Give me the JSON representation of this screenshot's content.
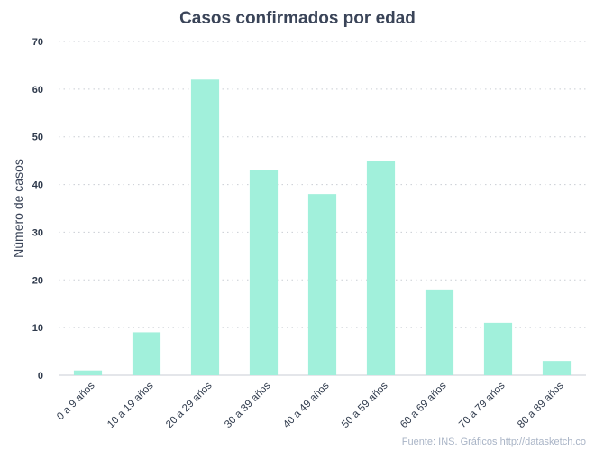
{
  "chart_data": {
    "type": "bar",
    "title": "Casos confirmados por edad",
    "ylabel": "Número de casos",
    "xlabel": "",
    "categories": [
      "0 a 9 años",
      "10 a 19 años",
      "20 a 29 años",
      "30 a 39 años",
      "40 a 49 años",
      "50 a 59 años",
      "60 a 69 años",
      "70 a 79 años",
      "80 a 89 años"
    ],
    "values": [
      1,
      9,
      62,
      43,
      38,
      45,
      18,
      11,
      3
    ],
    "ylim": [
      0,
      70
    ],
    "yticks": [
      "0",
      "10",
      "20",
      "30",
      "40",
      "50",
      "60",
      "70"
    ],
    "grid": true,
    "bar_color": "#a1f0db",
    "caption": "Fuente: INS. Gráficos http://datasketch.co"
  }
}
